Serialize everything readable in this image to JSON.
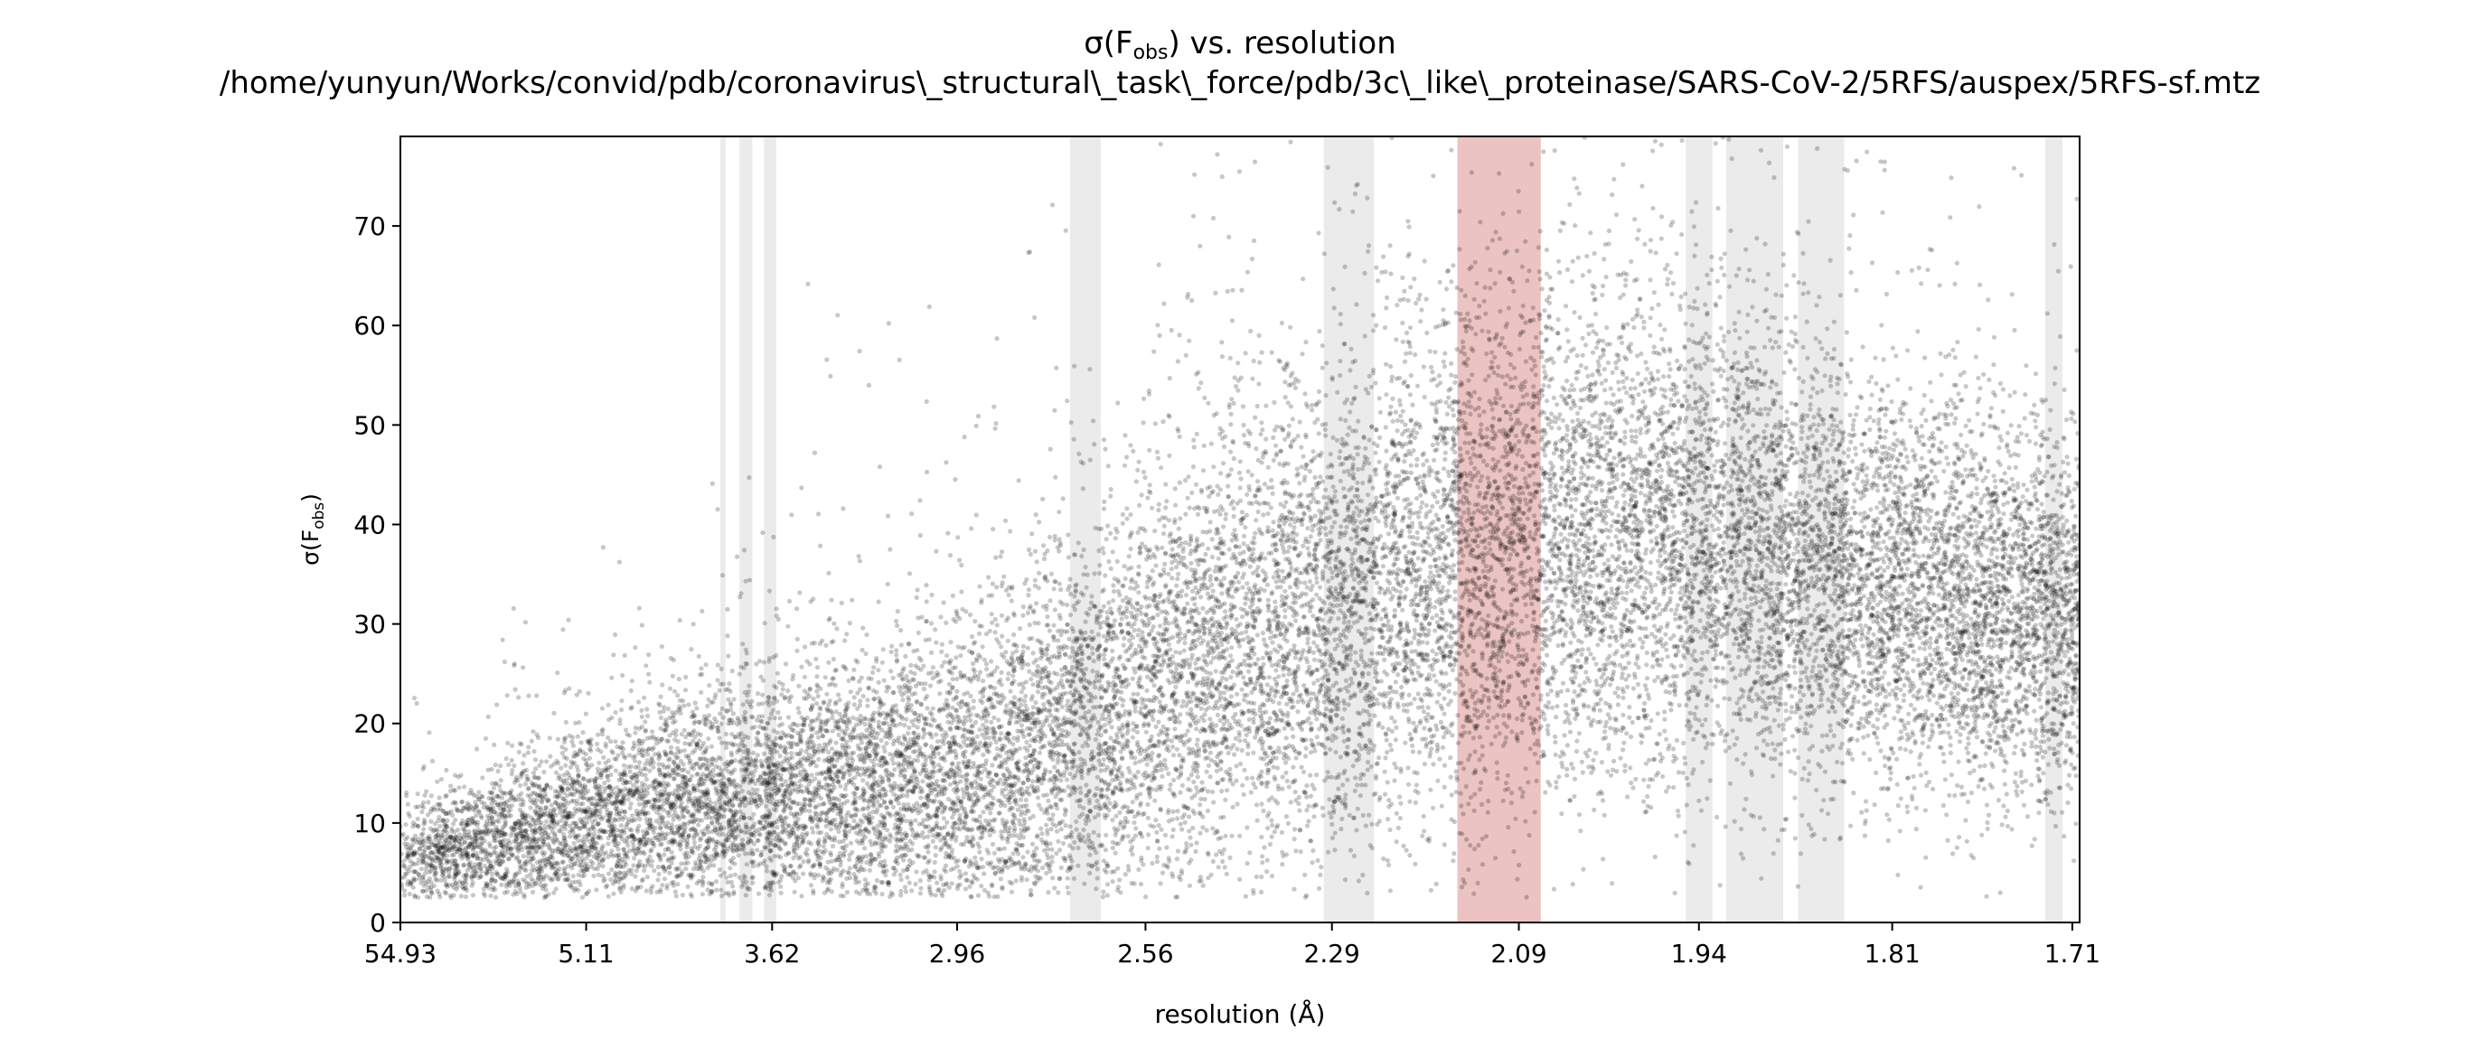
{
  "chart_data": {
    "type": "scatter",
    "title": {
      "line1_prefix": "σ(F",
      "line1_subscript": "obs",
      "line1_suffix": ") vs. resolution",
      "line2": "/home/yunyun/Works/convid/pdb/coronavirus\\_structural\\_task\\_force/pdb/3c\\_like\\_proteinase/SARS-CoV-2/5RFS/auspex/5RFS-sf.mtz"
    },
    "xlabel": "resolution (Å)",
    "ylabel_prefix": "σ(F",
    "ylabel_subscript": "obs",
    "ylabel_suffix": ")",
    "x_axis_scale": "1/d^2",
    "xlim": [
      0.000331,
      0.3435
    ],
    "ylim": [
      0,
      79
    ],
    "x_ticks": [
      {
        "label": "54.93",
        "value": 0.000331
      },
      {
        "label": "5.11",
        "value": 0.0383
      },
      {
        "label": "3.62",
        "value": 0.0763
      },
      {
        "label": "2.96",
        "value": 0.1141
      },
      {
        "label": "2.56",
        "value": 0.1526
      },
      {
        "label": "2.29",
        "value": 0.1907
      },
      {
        "label": "2.09",
        "value": 0.2289
      },
      {
        "label": "1.94",
        "value": 0.2657
      },
      {
        "label": "1.81",
        "value": 0.3052
      },
      {
        "label": "1.71",
        "value": 0.342
      }
    ],
    "y_ticks": [
      0,
      10,
      20,
      30,
      40,
      50,
      60,
      70
    ],
    "grid": false,
    "ice_ring_bands": [
      {
        "d_low": 3.9,
        "d_high": 3.87
      },
      {
        "d_low": 3.79,
        "d_high": 3.72
      },
      {
        "d_low": 3.66,
        "d_high": 3.6
      },
      {
        "d_low": 2.7,
        "d_high": 2.64
      },
      {
        "d_low": 2.3,
        "d_high": 2.24
      },
      {
        "d_low": 2.15,
        "d_high": 2.07,
        "highlighted": true
      },
      {
        "d_low": 1.95,
        "d_high": 1.93
      },
      {
        "d_low": 1.92,
        "d_high": 1.88
      },
      {
        "d_low": 1.87,
        "d_high": 1.84
      },
      {
        "d_low": 1.724,
        "d_high": 1.715
      }
    ],
    "colors": {
      "points": "#000000",
      "ice_band": "#ebebeb",
      "highlight_band": "#ecc3c3",
      "axes": "#000000"
    },
    "point_count": 22000,
    "trend": [
      {
        "x": 0.000331,
        "y_center": 6,
        "spread": 2.5
      },
      {
        "x": 0.02,
        "y_center": 8,
        "spread": 3.5
      },
      {
        "x": 0.05,
        "y_center": 11,
        "spread": 5
      },
      {
        "x": 0.08,
        "y_center": 13,
        "spread": 6
      },
      {
        "x": 0.11,
        "y_center": 14,
        "spread": 8
      },
      {
        "x": 0.14,
        "y_center": 19,
        "spread": 10
      },
      {
        "x": 0.17,
        "y_center": 27,
        "spread": 12
      },
      {
        "x": 0.2,
        "y_center": 33,
        "spread": 13
      },
      {
        "x": 0.23,
        "y_center": 38,
        "spread": 13
      },
      {
        "x": 0.26,
        "y_center": 39,
        "spread": 12
      },
      {
        "x": 0.29,
        "y_center": 35,
        "spread": 11
      },
      {
        "x": 0.3435,
        "y_center": 30,
        "spread": 9
      }
    ]
  }
}
